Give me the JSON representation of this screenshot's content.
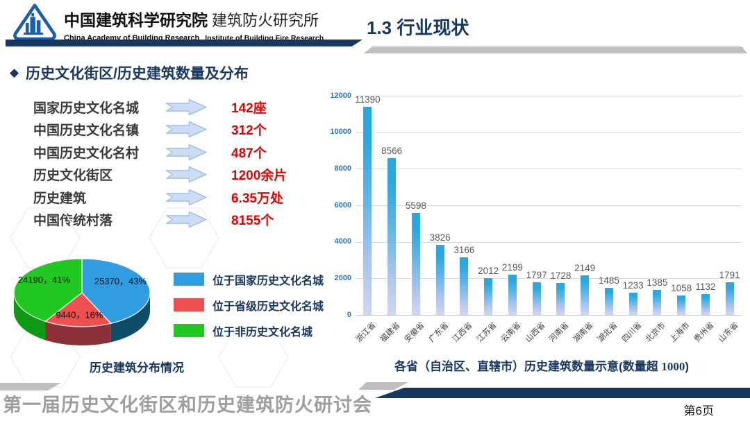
{
  "header": {
    "org_cn_1": "中国建筑科学研究院",
    "org_cn_2": "建筑防火研究所",
    "org_en_1": "China Academy of Building Research",
    "org_en_2": "Institute of Building Fire Research",
    "page_title": "1.3 行业现状"
  },
  "section": {
    "bullet": "◆",
    "title": "历史文化街区/历史建筑数量及分布"
  },
  "stats": [
    {
      "label": "国家历史文化名城",
      "value": "142座"
    },
    {
      "label": "中国历史文化名镇",
      "value": "312个"
    },
    {
      "label": "中国历史文化名村",
      "value": "487个"
    },
    {
      "label": "历史文化街区",
      "value": "1200余片"
    },
    {
      "label": "历史建筑",
      "value": "6.35万处"
    },
    {
      "label": "中国传统村落",
      "value": "8155个"
    }
  ],
  "colors": {
    "accent_navy": "#17375e",
    "stat_value_red": "#e60000",
    "arrow_fill": "#ccdcf2",
    "arrow_stroke": "#96bce4"
  },
  "chart_data": [
    {
      "type": "pie",
      "title": "历史建筑分布情况",
      "labels": [
        "位于国家历史文化名城",
        "位于省级历史文化名城",
        "位于非历史文化名城"
      ],
      "values": [
        25370,
        9440,
        24190
      ],
      "percents": [
        "43%",
        "16%",
        "41%"
      ],
      "slice_labels": [
        "25370，43%",
        "9440，16%",
        "24190，41%"
      ],
      "colors": [
        "#2f9de0",
        "#ee4f4f",
        "#22c822"
      ],
      "side_colors": [
        "#0f4c68",
        "#8b3038",
        "#0d9a12"
      ],
      "effect": "3d",
      "legend_position": "right"
    },
    {
      "type": "bar",
      "title": "各省（自治区、直辖市）历史建筑数量示意(数量超 1000)",
      "title_prefix": "各省（自治区、直辖市）历史建筑数量示意(数量超 ",
      "title_serif": "1000",
      "title_suffix": ")",
      "categories": [
        "浙江省",
        "福建省",
        "安徽省",
        "广东省",
        "江西省",
        "江苏省",
        "云南省",
        "山西省",
        "河南省",
        "湖南省",
        "湖北省",
        "四川省",
        "北京市",
        "上海市",
        "贵州省",
        "山东省"
      ],
      "values": [
        11390,
        8566,
        5598,
        3826,
        3166,
        2012,
        2199,
        1797,
        1728,
        2149,
        1485,
        1233,
        1385,
        1058,
        1132,
        1791
      ],
      "ylim": [
        0,
        12000
      ],
      "ytick_step": 2000,
      "grid": true,
      "axis_label_color": "#2e74b5",
      "value_label_color": "#595959"
    }
  ],
  "footer": {
    "conference": "第一届历史文化街区和历史建筑防火研讨会",
    "page_number": "第6页"
  }
}
